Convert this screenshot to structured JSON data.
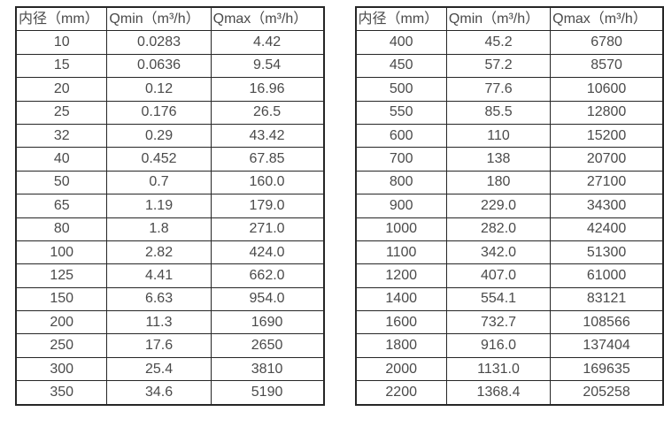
{
  "page": {
    "background_color": "#ffffff",
    "border_color": "#262626",
    "text_color": "#4a4a4a"
  },
  "tables": [
    {
      "name": "small-diameters",
      "headers": [
        "内径（mm）",
        "Qmin（m³/h）",
        "Qmax（m³/h）"
      ],
      "rows": [
        [
          "10",
          "0.0283",
          "4.42"
        ],
        [
          "15",
          "0.0636",
          "9.54"
        ],
        [
          "20",
          "0.12",
          "16.96"
        ],
        [
          "25",
          "0.176",
          "26.5"
        ],
        [
          "32",
          "0.29",
          "43.42"
        ],
        [
          "40",
          "0.452",
          "67.85"
        ],
        [
          "50",
          "0.7",
          "160.0"
        ],
        [
          "65",
          "1.19",
          "179.0"
        ],
        [
          "80",
          "1.8",
          "271.0"
        ],
        [
          "100",
          "2.82",
          "424.0"
        ],
        [
          "125",
          "4.41",
          "662.0"
        ],
        [
          "150",
          "6.63",
          "954.0"
        ],
        [
          "200",
          "11.3",
          "1690"
        ],
        [
          "250",
          "17.6",
          "2650"
        ],
        [
          "300",
          "25.4",
          "3810"
        ],
        [
          "350",
          "34.6",
          "5190"
        ]
      ]
    },
    {
      "name": "large-diameters",
      "headers": [
        "内径（mm）",
        "Qmin（m³/h）",
        "Qmax（m³/h）"
      ],
      "rows": [
        [
          "400",
          "45.2",
          "6780"
        ],
        [
          "450",
          "57.2",
          "8570"
        ],
        [
          "500",
          "77.6",
          "10600"
        ],
        [
          "550",
          "85.5",
          "12800"
        ],
        [
          "600",
          "110",
          "15200"
        ],
        [
          "700",
          "138",
          "20700"
        ],
        [
          "800",
          "180",
          "27100"
        ],
        [
          "900",
          "229.0",
          "34300"
        ],
        [
          "1000",
          "282.0",
          "42400"
        ],
        [
          "1100",
          "342.0",
          "51300"
        ],
        [
          "1200",
          "407.0",
          "61000"
        ],
        [
          "1400",
          "554.1",
          "83121"
        ],
        [
          "1600",
          "732.7",
          "108566"
        ],
        [
          "1800",
          "916.0",
          "137404"
        ],
        [
          "2000",
          "1131.0",
          "169635"
        ],
        [
          "2200",
          "1368.4",
          "205258"
        ]
      ]
    }
  ]
}
